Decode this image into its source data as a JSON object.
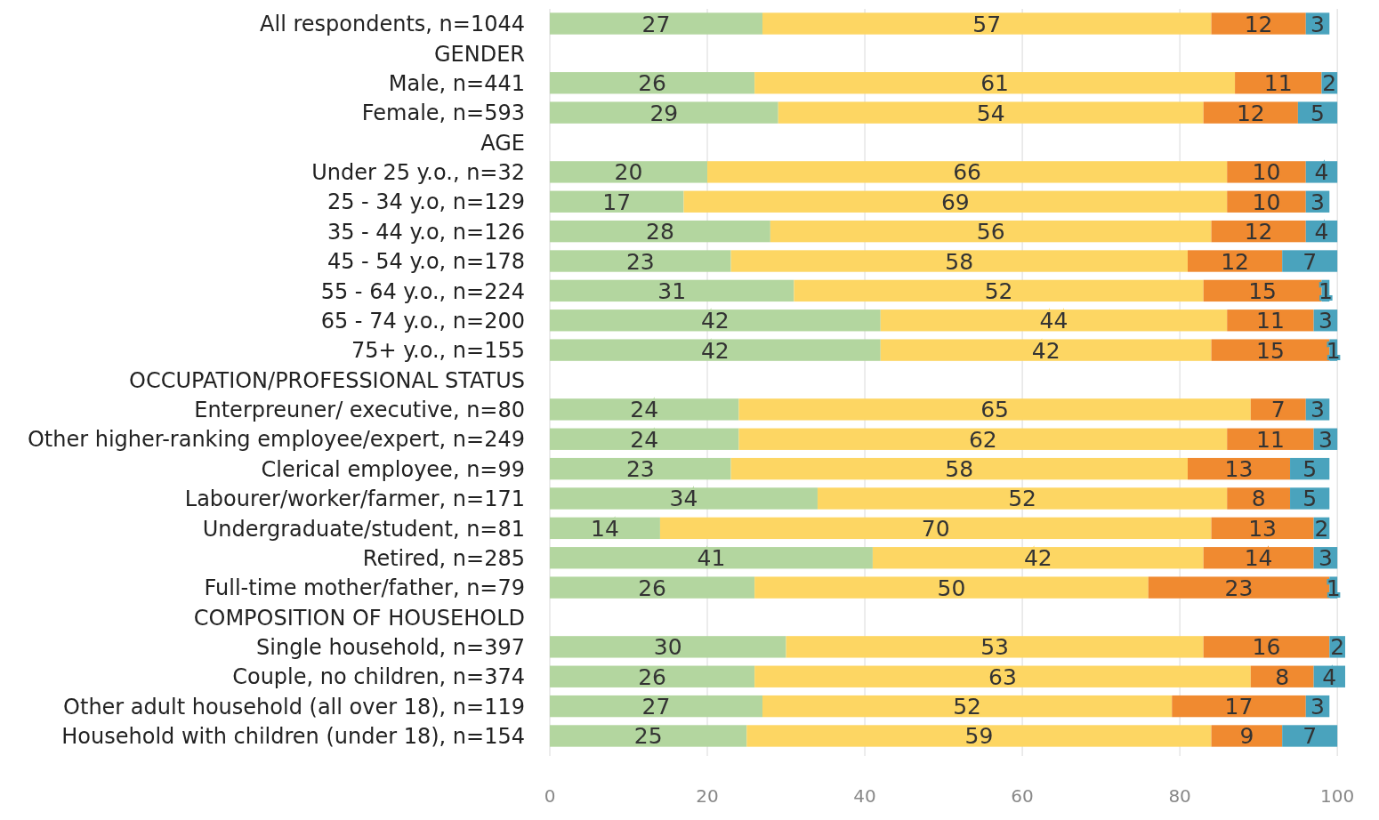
{
  "chart_data": {
    "type": "bar",
    "orientation": "horizontal",
    "stacked": true,
    "data_labels": true,
    "grid": "x",
    "categories": [
      "All respondents, n=1044",
      "GENDER",
      "Male, n=441",
      "Female, n=593",
      "AGE",
      "Under 25 y.o., n=32",
      "25 - 34 y.o, n=129",
      "35 - 44 y.o, n=126",
      "45 - 54 y.o, n=178",
      "55 - 64 y.o., n=224",
      "65 - 74 y.o., n=200",
      "75+ y.o., n=155",
      "OCCUPATION/PROFESSIONAL STATUS",
      "Enterpreuner/ executive, n=80",
      "Other higher-ranking employee/expert, n=249",
      "Clerical employee, n=99",
      "Labourer/worker/farmer, n=171",
      "Undergraduate/student, n=81",
      "Retired, n=285",
      "Full-time mother/father, n=79",
      "COMPOSITION OF HOUSEHOLD",
      "Single household, n=397",
      "Couple, no children, n=374",
      "Other adult household (all over 18), n=119",
      "Household with children (under 18), n=154"
    ],
    "series": [
      {
        "color": "#b3d69f",
        "values": [
          27,
          null,
          26,
          29,
          null,
          20,
          17,
          28,
          23,
          31,
          42,
          42,
          null,
          24,
          24,
          23,
          34,
          14,
          41,
          26,
          null,
          30,
          26,
          27,
          25
        ]
      },
      {
        "color": "#fdd663",
        "values": [
          57,
          null,
          61,
          54,
          null,
          66,
          69,
          56,
          58,
          52,
          44,
          42,
          null,
          65,
          62,
          58,
          52,
          70,
          42,
          50,
          null,
          53,
          63,
          52,
          59
        ]
      },
      {
        "color": "#f08a30",
        "values": [
          12,
          null,
          11,
          12,
          null,
          10,
          10,
          12,
          12,
          15,
          11,
          15,
          null,
          7,
          11,
          13,
          8,
          13,
          14,
          23,
          null,
          16,
          8,
          17,
          9
        ]
      },
      {
        "color": "#4aa3bd",
        "values": [
          3,
          null,
          2,
          5,
          null,
          4,
          3,
          4,
          7,
          1,
          3,
          1,
          null,
          3,
          3,
          5,
          5,
          2,
          3,
          1,
          null,
          2,
          4,
          3,
          7
        ]
      }
    ],
    "xlim": [
      0,
      101
    ],
    "xticks": [
      0,
      20,
      40,
      60,
      80,
      100
    ]
  }
}
